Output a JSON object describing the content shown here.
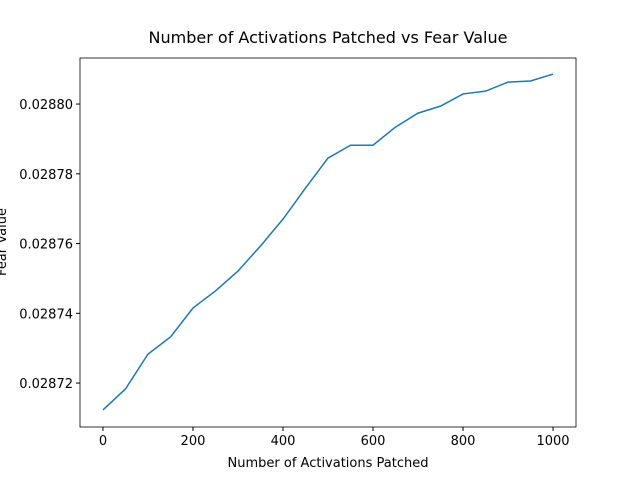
{
  "chart_data": {
    "type": "line",
    "title": "Number of Activations Patched vs Fear Value",
    "xlabel": "Number of Activations Patched",
    "ylabel": "Fear Value",
    "x": [
      0,
      50,
      100,
      150,
      200,
      250,
      300,
      350,
      400,
      450,
      500,
      550,
      600,
      650,
      700,
      750,
      800,
      850,
      900,
      950,
      1000
    ],
    "series": [
      {
        "name": "Fear Value",
        "color": "#1f77b4",
        "values": [
          0.0287123,
          0.0287183,
          0.0287283,
          0.0287332,
          0.0287415,
          0.0287464,
          0.0287521,
          0.0287593,
          0.028767,
          0.0287759,
          0.0287845,
          0.0287882,
          0.0287882,
          0.0287934,
          0.0287974,
          0.0287994,
          0.0288029,
          0.0288037,
          0.0288063,
          0.0288066,
          0.0288086
        ]
      }
    ],
    "xlim": [
      -51,
      1051
    ],
    "ylim": [
      0.0287074,
      0.0288132
    ],
    "xticks": [
      0,
      200,
      400,
      600,
      800,
      1000
    ],
    "yticks": [
      0.02872,
      0.02874,
      0.02876,
      0.02878,
      {
        "value": 0.0288,
        "label": "0.02880"
      }
    ]
  }
}
